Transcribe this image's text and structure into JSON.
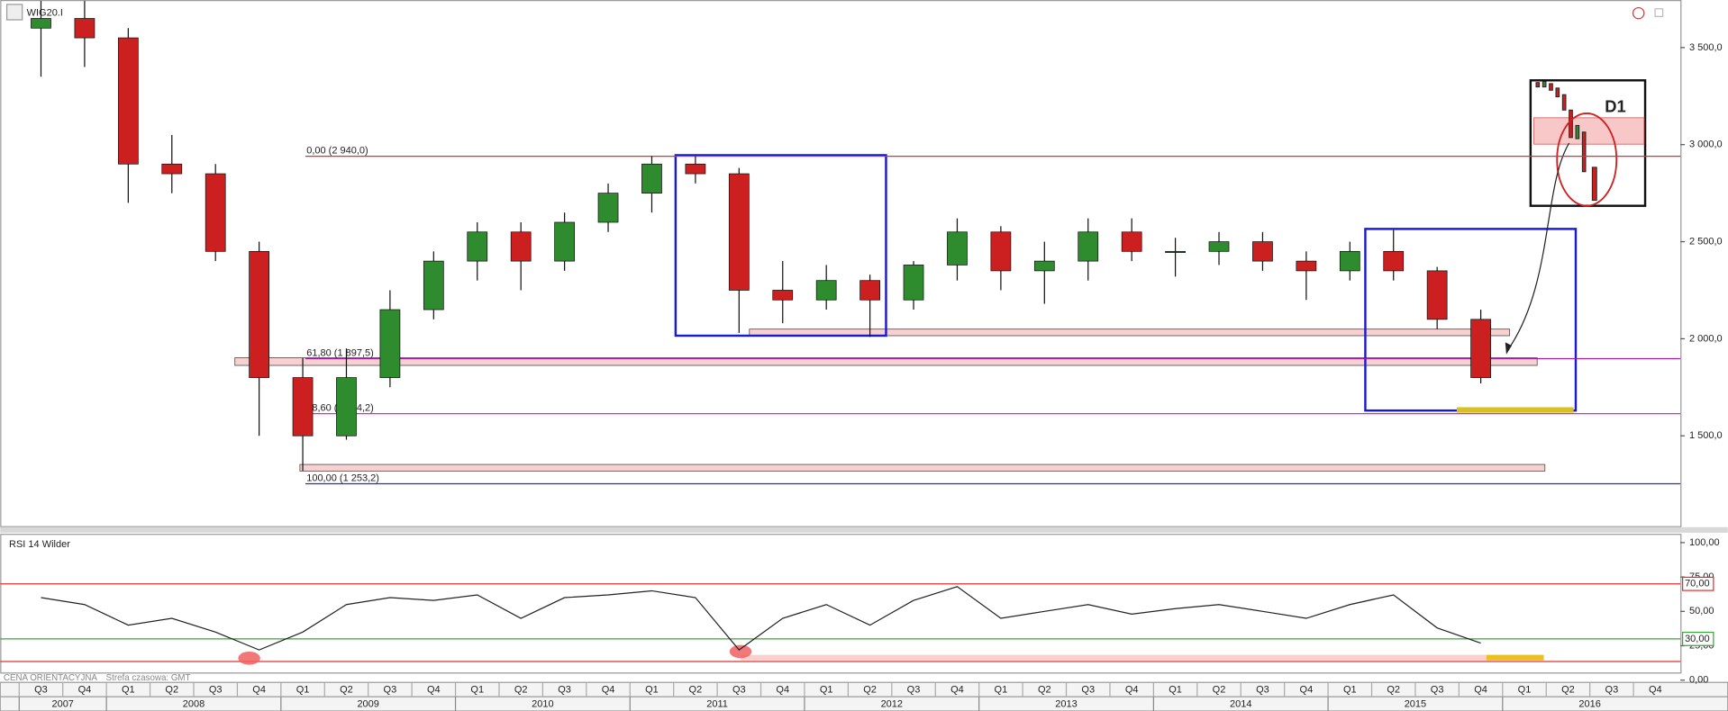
{
  "chart_data": [
    {
      "type": "candlestick",
      "title": "WIG20.I",
      "categories": [
        "Q3",
        "Q4",
        "Q1",
        "Q2",
        "Q3",
        "Q4",
        "Q1",
        "Q2",
        "Q3",
        "Q4",
        "Q1",
        "Q2",
        "Q3",
        "Q4",
        "Q1",
        "Q2",
        "Q3",
        "Q4",
        "Q1",
        "Q2",
        "Q3",
        "Q4",
        "Q1",
        "Q2",
        "Q3",
        "Q4",
        "Q1",
        "Q2",
        "Q3",
        "Q4",
        "Q1",
        "Q2",
        "Q3",
        "Q4",
        "Q1",
        "Q2",
        "Q3",
        "Q4"
      ],
      "years": [
        "2007",
        "2008",
        "2009",
        "2010",
        "2011",
        "2012",
        "2013",
        "2014",
        "2015",
        "2016"
      ],
      "open": [
        3600,
        3650,
        3550,
        2900,
        2850,
        2450,
        1800,
        1500,
        1800,
        2150,
        2400,
        2550,
        2400,
        2600,
        2750,
        2900,
        2850,
        2250,
        2200,
        2300,
        2200,
        2380,
        2550,
        2350,
        2400,
        2550,
        2450,
        2450,
        2500,
        2400,
        2350,
        2450,
        2350,
        2100,
        null,
        null,
        null,
        null
      ],
      "high": [
        3740,
        3740,
        3600,
        3050,
        2900,
        2500,
        1900,
        1950,
        2250,
        2450,
        2600,
        2600,
        2650,
        2800,
        2940,
        2940,
        2880,
        2400,
        2380,
        2330,
        2400,
        2620,
        2580,
        2500,
        2620,
        2620,
        2520,
        2550,
        2550,
        2450,
        2500,
        2560,
        2370,
        2150,
        null,
        null,
        null,
        null
      ],
      "low": [
        3350,
        3400,
        2700,
        2750,
        2400,
        1500,
        1320,
        1480,
        1750,
        2100,
        2300,
        2250,
        2350,
        2550,
        2650,
        2800,
        2030,
        2080,
        2150,
        2010,
        2150,
        2300,
        2250,
        2180,
        2300,
        2400,
        2320,
        2380,
        2350,
        2200,
        2300,
        2300,
        2050,
        1770,
        null,
        null,
        null,
        null
      ],
      "close": [
        3650,
        3550,
        2900,
        2850,
        2450,
        1800,
        1500,
        1800,
        2150,
        2400,
        2550,
        2400,
        2600,
        2750,
        2900,
        2850,
        2250,
        2200,
        2300,
        2200,
        2380,
        2550,
        2350,
        2400,
        2550,
        2450,
        2450,
        2500,
        2400,
        2350,
        2450,
        2350,
        2100,
        1800,
        null,
        null,
        null,
        null
      ],
      "up_color": "#2e8b2e",
      "down_color": "#cc2020",
      "ylim": [
        1035,
        3745
      ],
      "yticks": [
        {
          "value": 1500,
          "label": "1 500,0"
        },
        {
          "value": 2000,
          "label": "2 000,0"
        },
        {
          "value": 2500,
          "label": "2 500,0"
        },
        {
          "value": 3000,
          "label": "3 000,0"
        },
        {
          "value": 3500,
          "label": "3 500,0"
        }
      ],
      "grid": false,
      "levels": [
        {
          "value": 2940,
          "label": "0,00 (2 940,0)",
          "color": "#e03030"
        },
        {
          "value": 1897.5,
          "label": "61,80 (1 897,5)",
          "color": "#a020a0"
        },
        {
          "value": 1614.2,
          "label": "78,60 (1 614,2)",
          "color": "#e020e0"
        },
        {
          "value": 1253.2,
          "label": "100,00 (1 253,2)",
          "color": "#2030c0"
        }
      ],
      "inset_label": "D1"
    },
    {
      "type": "line",
      "title": "RSI 14 Wilder",
      "color": "#222222",
      "values": [
        60,
        55,
        40,
        45,
        35,
        22,
        35,
        55,
        60,
        58,
        62,
        45,
        60,
        62,
        65,
        60,
        22,
        45,
        55,
        40,
        58,
        68,
        45,
        50,
        55,
        48,
        52,
        55,
        50,
        45,
        55,
        62,
        38,
        27,
        null,
        null,
        null,
        null
      ],
      "ylim": [
        0,
        100
      ],
      "yticks": [
        {
          "value": 0,
          "label": "0,00"
        },
        {
          "value": 25,
          "label": "25,00"
        },
        {
          "value": 50,
          "label": "50,00"
        },
        {
          "value": 75,
          "label": "75,00"
        },
        {
          "value": 100,
          "label": "100,00"
        }
      ],
      "levels": [
        {
          "value": 70,
          "label": "70,00",
          "color": "#e03030"
        },
        {
          "value": 30,
          "label": "30,00",
          "color": "#3aa53a"
        }
      ]
    }
  ],
  "footer": {
    "price_note": "CENA ORIENTACYJNA",
    "timezone": "Strefa czasowa: GMT"
  }
}
